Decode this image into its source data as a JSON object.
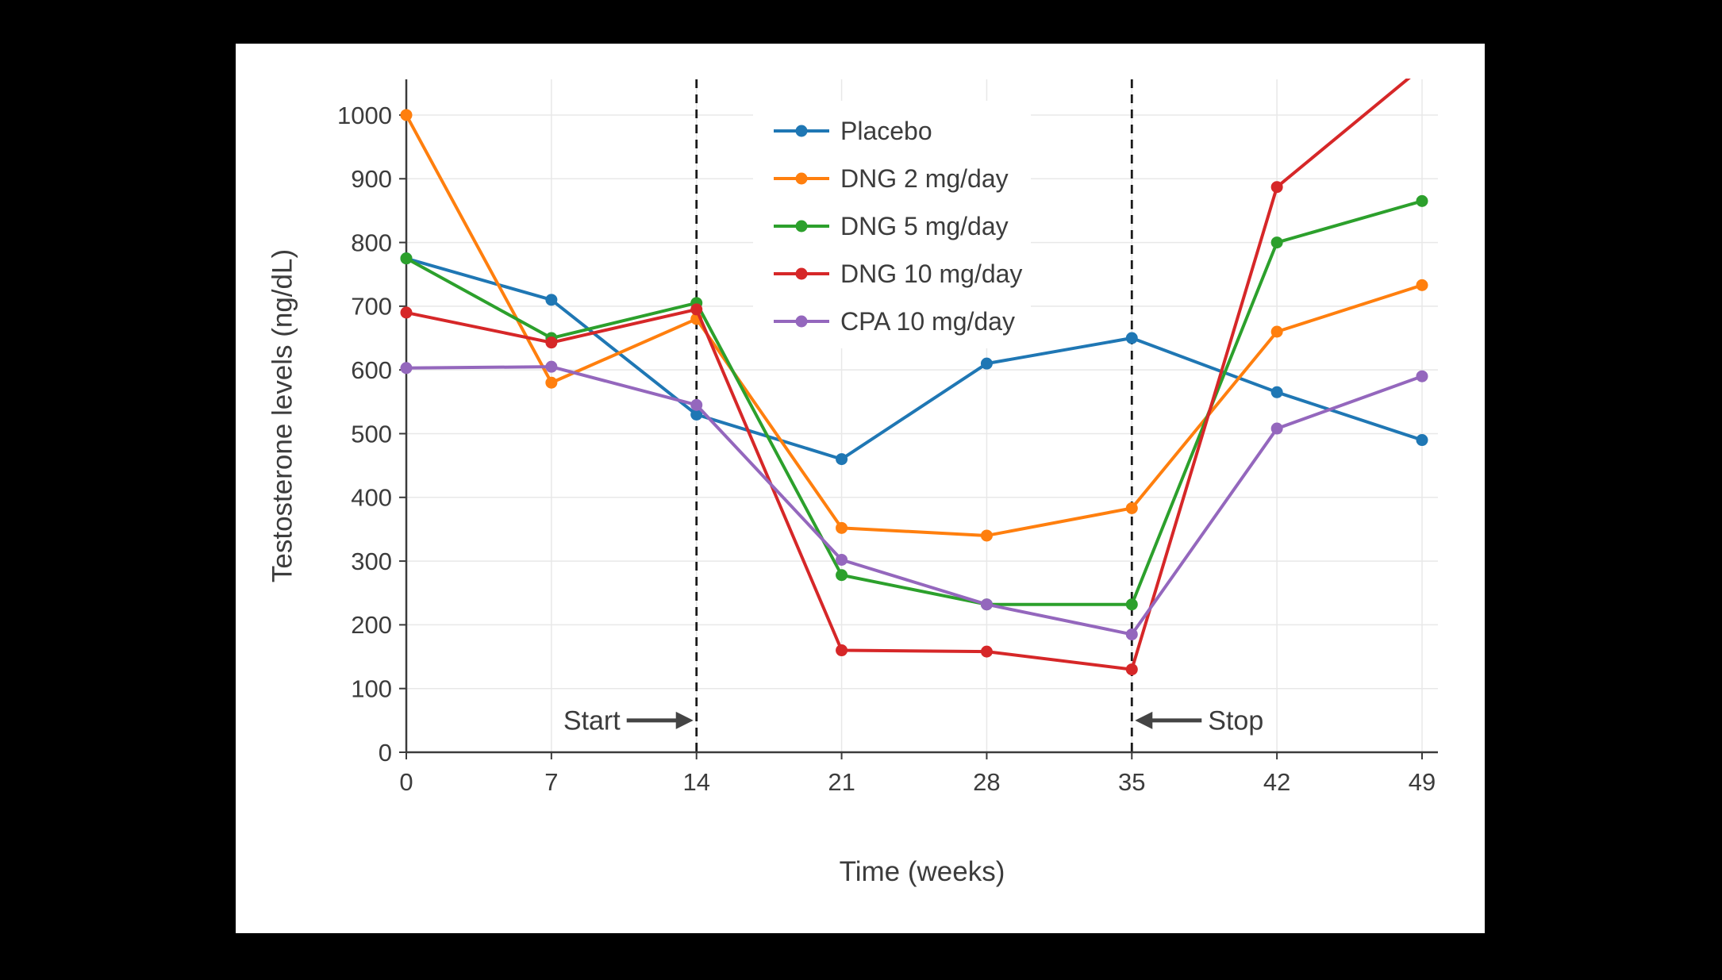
{
  "page": {
    "background": "#000000",
    "panel_background": "#ffffff"
  },
  "chart_data": {
    "type": "line",
    "title": "",
    "xlabel": "Time (weeks)",
    "ylabel": "Testosterone levels (ng/dL)",
    "x": [
      0,
      7,
      14,
      21,
      28,
      35,
      42,
      49
    ],
    "xlim": [
      0,
      49
    ],
    "ylim": [
      0,
      1056
    ],
    "yticks": [
      0,
      100,
      200,
      300,
      400,
      500,
      600,
      700,
      800,
      900,
      1000
    ],
    "grid": true,
    "legend_position": "top-center-inside",
    "series": [
      {
        "name": "Placebo",
        "color": "#1f77b4",
        "values": [
          775,
          710,
          530,
          460,
          610,
          650,
          565,
          490
        ]
      },
      {
        "name": "DNG 2 mg/day",
        "color": "#ff7f0e",
        "values": [
          1000,
          580,
          680,
          352,
          340,
          383,
          660,
          733
        ]
      },
      {
        "name": "DNG 5 mg/day",
        "color": "#2ca02c",
        "values": [
          775,
          650,
          705,
          278,
          232,
          232,
          800,
          865
        ]
      },
      {
        "name": "DNG 10 mg/day",
        "color": "#d62728",
        "values": [
          690,
          643,
          695,
          160,
          158,
          130,
          887,
          1075
        ]
      },
      {
        "name": "CPA 10 mg/day",
        "color": "#9467bd",
        "values": [
          603,
          605,
          545,
          302,
          232,
          185,
          508,
          590
        ]
      }
    ],
    "vlines": [
      {
        "x": 14,
        "label": "Start",
        "arrow": "right",
        "label_y": 50
      },
      {
        "x": 35,
        "label": "Stop",
        "arrow": "left",
        "label_y": 50
      }
    ],
    "colors": {
      "grid": "#e8e8e8",
      "axis": "#3b3b3b",
      "text": "#3c3c3c",
      "vline": "#1a1a1a",
      "annotation": "#444444"
    }
  }
}
